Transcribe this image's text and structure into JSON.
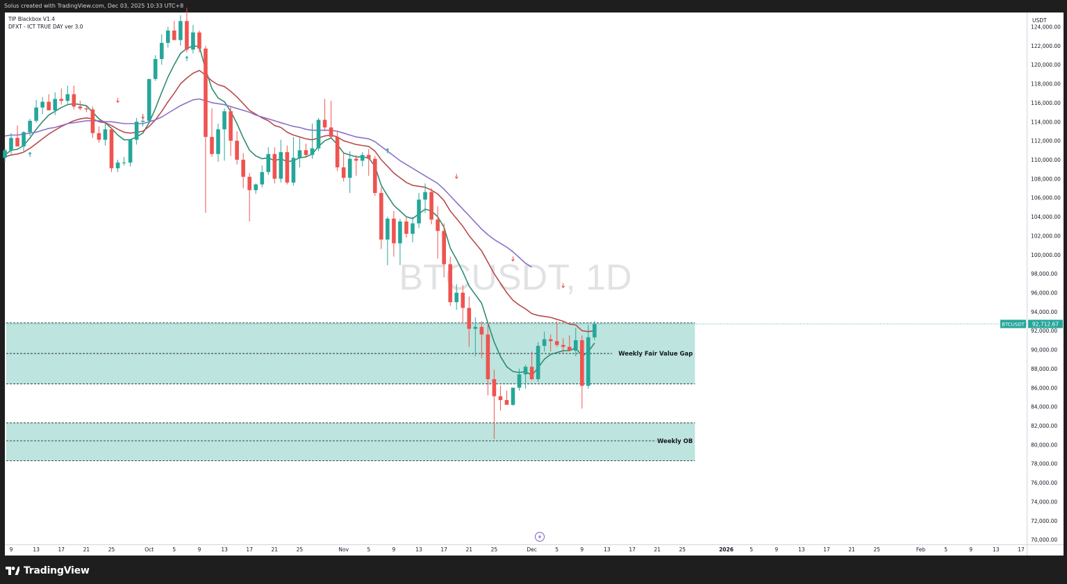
{
  "header": {
    "caption": "Solus created with TradingView.com, Dec 03, 2025 10:33 UTC+8"
  },
  "indicators": [
    "TIP Blackbox V1.4",
    "DFXT - ICT TRUE DAY ver 3.0"
  ],
  "watermark": "BTCUSDT, 1D",
  "footer": {
    "brand": "TradingView"
  },
  "colors": {
    "up": "#26a69a",
    "down": "#ef5350",
    "ema_fast": "#2e8b70",
    "ema_mid": "#b84a4a",
    "ema_slow": "#8b6fc8",
    "zone_fill": "#b2dfd8",
    "price_tag": "#26a69a",
    "frame": "#1e1e1e"
  },
  "icons": {
    "brand": "tradingview-logo-icon",
    "flash": "flash-icon"
  },
  "chart_data": {
    "type": "candlestick",
    "symbol": "BTCUSDT",
    "interval": "1D",
    "currency": "USDT",
    "ylim": [
      69500,
      125500
    ],
    "y_ticks": [
      70000,
      72000,
      74000,
      76000,
      78000,
      80000,
      82000,
      84000,
      86000,
      88000,
      90000,
      92000,
      94000,
      96000,
      98000,
      100000,
      102000,
      104000,
      106000,
      108000,
      110000,
      112000,
      114000,
      116000,
      118000,
      120000,
      122000,
      124000
    ],
    "y_tick_labels": [
      "70,000.00",
      "72,000.00",
      "74,000.00",
      "76,000.00",
      "78,000.00",
      "80,000.00",
      "82,000.00",
      "84,000.00",
      "86,000.00",
      "88,000.00",
      "90,000.00",
      "92,000.00",
      "94,000.00",
      "96,000.00",
      "98,000.00",
      "100,000.00",
      "102,000.00",
      "104,000.00",
      "106,000.00",
      "108,000.00",
      "110,000.00",
      "112,000.00",
      "114,000.00",
      "116,000.00",
      "118,000.00",
      "120,000.00",
      "122,000.00",
      "124,000.00"
    ],
    "x_range": [
      "2025-09-08",
      "2026-02-18"
    ],
    "x_ticks": [
      {
        "date": "2025-09-09",
        "label": "9"
      },
      {
        "date": "2025-09-13",
        "label": "13"
      },
      {
        "date": "2025-09-17",
        "label": "17"
      },
      {
        "date": "2025-09-21",
        "label": "21"
      },
      {
        "date": "2025-09-25",
        "label": "25"
      },
      {
        "date": "2025-10-01",
        "label": "Oct"
      },
      {
        "date": "2025-10-05",
        "label": "5"
      },
      {
        "date": "2025-10-09",
        "label": "9"
      },
      {
        "date": "2025-10-13",
        "label": "13"
      },
      {
        "date": "2025-10-17",
        "label": "17"
      },
      {
        "date": "2025-10-21",
        "label": "21"
      },
      {
        "date": "2025-10-25",
        "label": "25"
      },
      {
        "date": "2025-11-01",
        "label": "Nov"
      },
      {
        "date": "2025-11-05",
        "label": "5"
      },
      {
        "date": "2025-11-09",
        "label": "9"
      },
      {
        "date": "2025-11-13",
        "label": "13"
      },
      {
        "date": "2025-11-17",
        "label": "17"
      },
      {
        "date": "2025-11-21",
        "label": "21"
      },
      {
        "date": "2025-11-25",
        "label": "25"
      },
      {
        "date": "2025-12-01",
        "label": "Dec"
      },
      {
        "date": "2025-12-05",
        "label": "5"
      },
      {
        "date": "2025-12-09",
        "label": "9"
      },
      {
        "date": "2025-12-13",
        "label": "13"
      },
      {
        "date": "2025-12-17",
        "label": "17"
      },
      {
        "date": "2025-12-21",
        "label": "21"
      },
      {
        "date": "2025-12-25",
        "label": "25"
      },
      {
        "date": "2026-01-01",
        "label": "2026"
      },
      {
        "date": "2026-01-05",
        "label": "5"
      },
      {
        "date": "2026-01-09",
        "label": "9"
      },
      {
        "date": "2026-01-13",
        "label": "13"
      },
      {
        "date": "2026-01-17",
        "label": "17"
      },
      {
        "date": "2026-01-21",
        "label": "21"
      },
      {
        "date": "2026-01-25",
        "label": "25"
      },
      {
        "date": "2026-02-01",
        "label": "Feb"
      },
      {
        "date": "2026-02-05",
        "label": "5"
      },
      {
        "date": "2026-02-09",
        "label": "9"
      },
      {
        "date": "2026-02-13",
        "label": "13"
      },
      {
        "date": "2026-02-17",
        "label": "17"
      }
    ],
    "start_date": "2025-09-08",
    "candles": [
      [
        110200,
        111200,
        109800,
        111000
      ],
      [
        111000,
        112800,
        110600,
        112300
      ],
      [
        112300,
        113600,
        111900,
        111400
      ],
      [
        111400,
        113000,
        110900,
        112900
      ],
      [
        112900,
        114300,
        112500,
        114100
      ],
      [
        114100,
        116300,
        113900,
        115500
      ],
      [
        115500,
        116600,
        114800,
        116100
      ],
      [
        116100,
        116900,
        115600,
        115200
      ],
      [
        115200,
        117100,
        114700,
        116400
      ],
      [
        116400,
        117500,
        115800,
        116200
      ],
      [
        116200,
        117800,
        115900,
        116900
      ],
      [
        116900,
        117800,
        115300,
        115600
      ],
      [
        115600,
        116200,
        115200,
        115400
      ],
      [
        115400,
        115700,
        115000,
        115300
      ],
      [
        115300,
        115600,
        112300,
        112800
      ],
      [
        112800,
        113500,
        111800,
        112100
      ],
      [
        112100,
        113900,
        111500,
        113200
      ],
      [
        113200,
        113400,
        108700,
        109100
      ],
      [
        109100,
        110000,
        108700,
        109700
      ],
      [
        109700,
        110300,
        109400,
        109700
      ],
      [
        109700,
        112200,
        109300,
        112100
      ],
      [
        112100,
        114400,
        111600,
        114000
      ],
      [
        114000,
        114800,
        113500,
        114100
      ],
      [
        114100,
        118200,
        113800,
        118500
      ],
      [
        118500,
        121000,
        118300,
        120600
      ],
      [
        120600,
        123200,
        120000,
        122300
      ],
      [
        122300,
        124000,
        121800,
        123600
      ],
      [
        123600,
        124600,
        122600,
        122600
      ],
      [
        122600,
        125200,
        122000,
        124600
      ],
      [
        124600,
        126000,
        121300,
        121600
      ],
      [
        121600,
        124200,
        121200,
        123400
      ],
      [
        123400,
        123600,
        121300,
        121700
      ],
      [
        121700,
        122000,
        104400,
        112400
      ],
      [
        112400,
        115400,
        110300,
        110600
      ],
      [
        110600,
        113800,
        109800,
        113200
      ],
      [
        113200,
        115400,
        109900,
        115100
      ],
      [
        115100,
        115600,
        110400,
        112000
      ],
      [
        112000,
        113000,
        109500,
        110000
      ],
      [
        110000,
        110700,
        107000,
        108200
      ],
      [
        108200,
        108600,
        103500,
        106800
      ],
      [
        106800,
        107500,
        106400,
        107400
      ],
      [
        107400,
        109400,
        107100,
        108700
      ],
      [
        108700,
        111300,
        108400,
        110600
      ],
      [
        110600,
        111300,
        107500,
        108000
      ],
      [
        108000,
        112100,
        107600,
        110800
      ],
      [
        110800,
        111500,
        107400,
        107600
      ],
      [
        107600,
        112400,
        107300,
        110200
      ],
      [
        110200,
        112300,
        109200,
        111000
      ],
      [
        111000,
        111700,
        110200,
        110500
      ],
      [
        110500,
        113800,
        110100,
        111200
      ],
      [
        111200,
        114400,
        110900,
        114200
      ],
      [
        114200,
        116400,
        113000,
        113400
      ],
      [
        113400,
        116200,
        112200,
        112400
      ],
      [
        112400,
        113000,
        108800,
        109200
      ],
      [
        109200,
        110800,
        107700,
        108100
      ],
      [
        108100,
        110900,
        106500,
        110100
      ],
      [
        110100,
        110500,
        108300,
        109900
      ],
      [
        109900,
        110800,
        109300,
        110500
      ],
      [
        110500,
        111100,
        108300,
        110100
      ],
      [
        110100,
        110400,
        106200,
        106500
      ],
      [
        106500,
        107100,
        100600,
        101600
      ],
      [
        101600,
        104000,
        98900,
        103800
      ],
      [
        103800,
        104600,
        99800,
        101200
      ],
      [
        101200,
        103800,
        98900,
        103500
      ],
      [
        103500,
        104000,
        101800,
        102200
      ],
      [
        102200,
        104000,
        101300,
        103300
      ],
      [
        103300,
        106500,
        102800,
        105800
      ],
      [
        105800,
        107500,
        104400,
        106600
      ],
      [
        106600,
        107000,
        103200,
        103700
      ],
      [
        103700,
        105100,
        99600,
        102500
      ],
      [
        102500,
        103300,
        97600,
        99000
      ],
      [
        99000,
        99800,
        94600,
        95000
      ],
      [
        95000,
        96900,
        94200,
        96000
      ],
      [
        96000,
        96800,
        92900,
        94400
      ],
      [
        94400,
        95600,
        90300,
        92200
      ],
      [
        92200,
        93400,
        89300,
        92400
      ],
      [
        92400,
        93000,
        89100,
        91600
      ],
      [
        91600,
        92800,
        85200,
        86900
      ],
      [
        86900,
        87900,
        80600,
        85100
      ],
      [
        85100,
        86200,
        83600,
        84700
      ],
      [
        84700,
        85700,
        84200,
        84200
      ],
      [
        84200,
        85600,
        84100,
        86000
      ],
      [
        86000,
        88000,
        85700,
        87400
      ],
      [
        87400,
        88400,
        85900,
        88200
      ],
      [
        88200,
        89800,
        86800,
        86900
      ],
      [
        86900,
        90800,
        86600,
        90400
      ],
      [
        90400,
        91900,
        89800,
        91100
      ],
      [
        91100,
        91600,
        89800,
        90900
      ],
      [
        90900,
        93000,
        90300,
        90500
      ],
      [
        90500,
        91200,
        89600,
        90300
      ],
      [
        90300,
        91500,
        89900,
        89900
      ],
      [
        89900,
        92300,
        89300,
        91000
      ],
      [
        91000,
        91500,
        83800,
        86200
      ],
      [
        86200,
        92600,
        85900,
        91300
      ],
      [
        91300,
        93000,
        91000,
        92712.67
      ]
    ],
    "series": [
      {
        "name": "EMA fast",
        "values": [
          110500,
          111000,
          111100,
          111500,
          112300,
          113200,
          114000,
          114700,
          115100,
          115500,
          115800,
          115900,
          115800,
          115700,
          115000,
          114300,
          113900,
          113300,
          112600,
          112100,
          112100,
          112400,
          112800,
          113900,
          115400,
          117100,
          118700,
          120000,
          121200,
          121700,
          122000,
          121900,
          119500,
          117500,
          116500,
          116100,
          115100,
          113800,
          112300,
          111000,
          110400,
          110100,
          110200,
          109900,
          110100,
          109800,
          109900,
          110200,
          110300,
          110600,
          111400,
          112000,
          112300,
          111600,
          110700,
          110500,
          110300,
          110300,
          110200,
          109300,
          107300,
          106200,
          105200,
          104600,
          104000,
          103800,
          104300,
          104800,
          104600,
          104000,
          102900,
          100700,
          99500,
          98200,
          96700,
          95800,
          94900,
          92800,
          90800,
          89300,
          88200,
          87700,
          87600,
          87700,
          87300,
          88100,
          89000,
          89500,
          89700,
          89900,
          89900,
          90200,
          89300,
          89800,
          90700
        ]
      },
      {
        "name": "EMA mid",
        "values": [
          110300,
          110500,
          110600,
          110800,
          111200,
          111700,
          112200,
          112700,
          113100,
          113500,
          113800,
          114100,
          114300,
          114400,
          114300,
          114000,
          113900,
          113600,
          113200,
          112900,
          112800,
          112900,
          113000,
          113500,
          114200,
          115100,
          116100,
          117000,
          118000,
          118600,
          119100,
          119400,
          118900,
          118300,
          117900,
          117700,
          117200,
          116600,
          115900,
          115200,
          114800,
          114400,
          114100,
          113600,
          113400,
          112900,
          112600,
          112400,
          112200,
          112100,
          112300,
          112500,
          112600,
          112400,
          112000,
          111800,
          111600,
          111500,
          111400,
          110900,
          110000,
          109300,
          108600,
          108100,
          107600,
          107300,
          107200,
          107100,
          106800,
          106400,
          105700,
          104600,
          103800,
          103000,
          102000,
          101200,
          100400,
          99200,
          98000,
          97000,
          96000,
          95200,
          94700,
          94300,
          93800,
          93600,
          93500,
          93400,
          93200,
          93000,
          92700,
          92600,
          92000,
          91900,
          92000
        ]
      },
      {
        "name": "EMA slow",
        "values": [
          112500,
          112600,
          112600,
          112700,
          112800,
          112900,
          113100,
          113300,
          113400,
          113600,
          113800,
          113900,
          114000,
          114100,
          114100,
          114100,
          114000,
          114000,
          113900,
          113800,
          113800,
          113800,
          113800,
          114000,
          114200,
          114500,
          114900,
          115300,
          115700,
          116000,
          116300,
          116400,
          116200,
          116000,
          115900,
          115800,
          115600,
          115400,
          115200,
          115000,
          114700,
          114500,
          114300,
          114100,
          113900,
          113700,
          113500,
          113400,
          113200,
          113100,
          113100,
          113100,
          113100,
          113000,
          112800,
          112600,
          112400,
          112300,
          112200,
          111900,
          111400,
          110900,
          110400,
          109900,
          109500,
          109100,
          108700,
          108300,
          107900,
          107500,
          106900,
          106200,
          105500,
          104800,
          104100,
          103400,
          102700,
          102100,
          101600,
          101200,
          100800,
          100300,
          99700,
          99100,
          98700,
          null,
          null,
          null,
          null,
          null,
          null,
          null,
          null,
          null,
          null
        ]
      }
    ],
    "signal_arrows": [
      {
        "index": 4,
        "dir": "up",
        "price": 110500
      },
      {
        "index": 18,
        "dir": "down",
        "price": 116300
      },
      {
        "index": 22,
        "dir": "down",
        "price": 114600
      },
      {
        "index": 29,
        "dir": "up",
        "price": 120600
      },
      {
        "index": 61,
        "dir": "up",
        "price": 110900
      },
      {
        "index": 72,
        "dir": "down",
        "price": 108300
      },
      {
        "index": 81,
        "dir": "down",
        "price": 99600
      },
      {
        "index": 89,
        "dir": "down",
        "price": 96800
      }
    ],
    "zones": [
      {
        "label": "Weekly Fair Value Gap",
        "top": 92830,
        "mid": 89600,
        "bottom": 86400,
        "end": "2025-12-27"
      },
      {
        "label": "Weekly OB",
        "top": 82300,
        "mid": 80400,
        "bottom": 78300,
        "end": "2025-12-27"
      }
    ],
    "last_price": {
      "value": 92712.67,
      "label": "92,712.67",
      "symbol": "BTCUSDT"
    }
  }
}
